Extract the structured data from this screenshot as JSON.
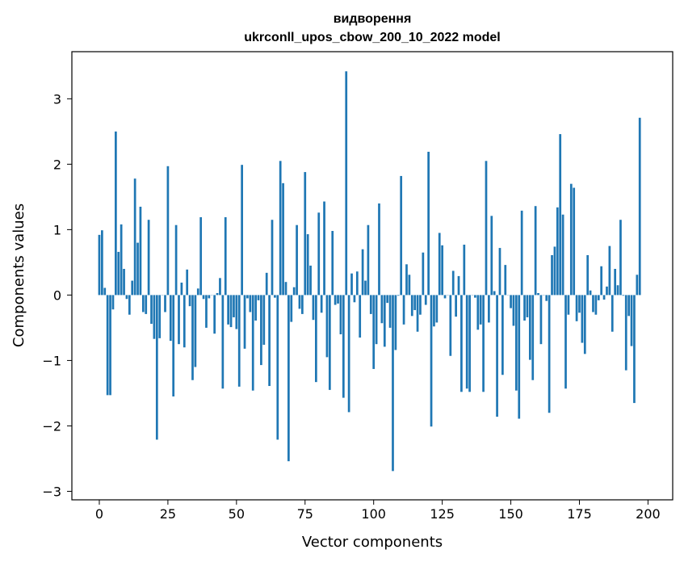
{
  "chart_data": {
    "type": "bar",
    "title": [
      "видворення",
      "ukrconll_upos_cbow_200_10_2022 model"
    ],
    "xlabel": "Vector components",
    "ylabel": "Components values",
    "xlim": [
      -10,
      209
    ],
    "ylim": [
      -3.13,
      3.72
    ],
    "xticks": [
      0,
      25,
      50,
      75,
      100,
      125,
      150,
      175,
      200
    ],
    "yticks": [
      -3,
      -2,
      -1,
      0,
      1,
      2,
      3
    ],
    "xtick_labels": [
      "0",
      "25",
      "50",
      "75",
      "100",
      "125",
      "150",
      "175",
      "200"
    ],
    "ytick_labels": [
      "−3",
      "−2",
      "−1",
      "0",
      "1",
      "2",
      "3"
    ],
    "grid": false,
    "bar_color": "#1f77b4",
    "values": [
      0.92,
      0.99,
      0.11,
      -1.53,
      -1.53,
      -0.22,
      2.5,
      0.66,
      1.08,
      0.4,
      -0.06,
      -0.3,
      0.22,
      1.78,
      0.8,
      1.35,
      -0.26,
      -0.29,
      1.15,
      -0.44,
      -0.67,
      -2.21,
      -0.66,
      0.0,
      -0.26,
      1.97,
      -0.7,
      -1.55,
      1.07,
      -0.75,
      0.19,
      -0.8,
      0.39,
      -0.17,
      -1.3,
      -1.1,
      0.1,
      1.19,
      -0.06,
      -0.5,
      -0.05,
      0.0,
      -0.59,
      0.03,
      0.26,
      -1.43,
      1.19,
      -0.45,
      -0.49,
      -0.34,
      -0.52,
      -1.4,
      1.99,
      -0.82,
      -0.05,
      -0.26,
      -1.46,
      -0.39,
      -0.08,
      -1.07,
      -0.76,
      0.34,
      -1.39,
      1.15,
      -0.04,
      -2.21,
      2.05,
      1.71,
      0.2,
      -2.54,
      -0.41,
      0.12,
      1.07,
      -0.21,
      -0.29,
      1.88,
      0.93,
      0.45,
      -0.38,
      -1.33,
      1.26,
      -0.27,
      1.43,
      -0.95,
      -1.45,
      0.98,
      -0.15,
      -0.13,
      -0.6,
      -1.57,
      3.42,
      -1.79,
      0.33,
      -0.11,
      0.36,
      -0.65,
      0.7,
      0.22,
      1.07,
      -0.29,
      -1.13,
      -0.75,
      1.4,
      -0.43,
      -0.79,
      -0.12,
      -0.5,
      -2.69,
      -0.84,
      -0.01,
      1.82,
      -0.45,
      0.47,
      0.31,
      -0.32,
      -0.23,
      -0.56,
      -0.3,
      0.65,
      -0.15,
      2.19,
      -2.01,
      -0.48,
      -0.42,
      0.95,
      0.76,
      -0.05,
      0.0,
      -0.93,
      0.37,
      -0.33,
      0.29,
      -1.48,
      0.77,
      -1.43,
      -1.48,
      0.0,
      -0.04,
      -0.53,
      -0.45,
      -1.48,
      2.05,
      -0.42,
      1.21,
      0.06,
      -1.86,
      0.72,
      -1.22,
      0.46,
      0.0,
      -0.2,
      -0.47,
      -1.46,
      -1.89,
      1.29,
      -0.39,
      -0.34,
      -0.99,
      -1.3,
      1.36,
      0.03,
      -0.75,
      0.0,
      -0.09,
      -1.8,
      0.61,
      0.74,
      1.34,
      2.46,
      1.23,
      -1.43,
      -0.3,
      1.7,
      1.64,
      -0.4,
      -0.27,
      -0.73,
      -0.9,
      0.61,
      0.07,
      -0.26,
      -0.3,
      -0.08,
      0.44,
      -0.07,
      0.13,
      0.75,
      -0.56,
      0.4,
      0.15,
      1.15,
      -0.01,
      -1.15,
      -0.32,
      -0.78,
      -1.65,
      0.31,
      2.71
    ]
  }
}
